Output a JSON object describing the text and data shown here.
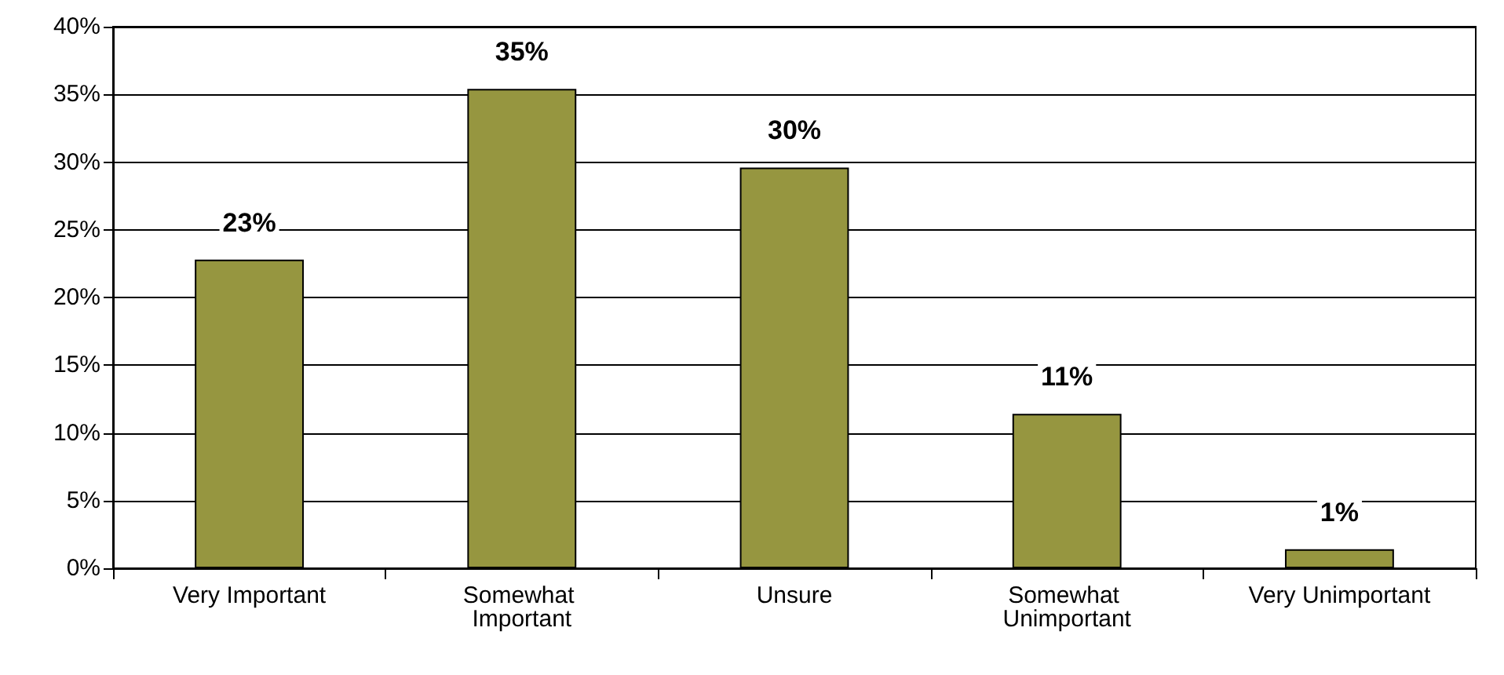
{
  "chart_data": {
    "type": "bar",
    "categories": [
      "Very Important",
      "Somewhat Important",
      "Unsure",
      "Somewhat Unimportant",
      "Very Unimportant"
    ],
    "values": [
      22.8,
      35.4,
      29.6,
      11.4,
      1.4
    ],
    "value_labels": [
      "23%",
      "35%",
      "30%",
      "11%",
      "1%"
    ],
    "color": "#969640",
    "grid": "y",
    "ylim": [
      0,
      40
    ],
    "yticks": [
      {
        "value": 0,
        "label": "0%"
      },
      {
        "value": 5,
        "label": "5%"
      },
      {
        "value": 10,
        "label": "10%"
      },
      {
        "value": 15,
        "label": "15%"
      },
      {
        "value": 20,
        "label": "20%"
      },
      {
        "value": 25,
        "label": "25%"
      },
      {
        "value": 30,
        "label": "30%"
      },
      {
        "value": 35,
        "label": "35%"
      },
      {
        "value": 40,
        "label": "40%"
      }
    ]
  }
}
